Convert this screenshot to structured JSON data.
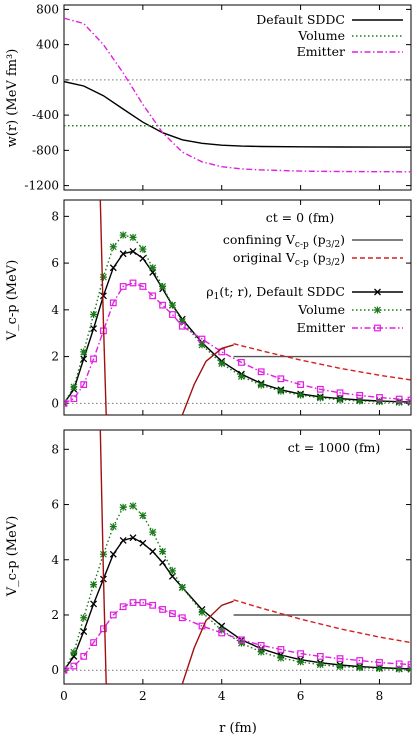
{
  "chart_data": [
    {
      "type": "line",
      "panel": "top",
      "ylabel": "w(r)  (MeV fm³)",
      "xlim": [
        0,
        8.8
      ],
      "ylim": [
        -1250,
        850
      ],
      "yticks": [
        800,
        400,
        0,
        -400,
        -800,
        -1200
      ],
      "ytick_labels": [
        "800",
        "400",
        "0",
        "-400",
        "-800",
        "-1200"
      ],
      "grid": false,
      "legend": "top-right",
      "reference_lines": [
        {
          "y": 0,
          "color": "#777777",
          "style": "dotted"
        },
        {
          "y": -520,
          "color": "#1a7a1a",
          "style": "dotted"
        }
      ],
      "series": [
        {
          "name": "Default SDDC",
          "color": "#000000",
          "style": "solid",
          "x": [
            0,
            0.5,
            1,
            1.5,
            2,
            2.5,
            3,
            3.5,
            4,
            4.5,
            5,
            6,
            7,
            8,
            8.8
          ],
          "y": [
            -20,
            -70,
            -180,
            -330,
            -480,
            -600,
            -680,
            -720,
            -742,
            -752,
            -756,
            -760,
            -762,
            -763,
            -763
          ]
        },
        {
          "name": "Volume",
          "color": "#1a7a1a",
          "style": "dotted",
          "x": [
            0,
            8.8
          ],
          "y": [
            -520,
            -520
          ]
        },
        {
          "name": "Emitter",
          "color": "#e020e0",
          "style": "dashdot",
          "x": [
            0,
            0.5,
            1,
            1.5,
            2,
            2.5,
            3,
            3.5,
            4,
            4.5,
            5,
            6,
            7,
            8,
            8.8
          ],
          "y": [
            700,
            640,
            400,
            80,
            -280,
            -600,
            -820,
            -930,
            -985,
            -1010,
            -1022,
            -1035,
            -1040,
            -1042,
            -1043
          ]
        }
      ]
    },
    {
      "type": "line",
      "panel": "middle",
      "annotation": "ct = 0  (fm)",
      "ylabel": "V_c-p  (MeV)",
      "xlim": [
        0,
        8.8
      ],
      "ylim": [
        -0.5,
        8.7
      ],
      "yticks": [
        0,
        2,
        4,
        6,
        8
      ],
      "ytick_labels": [
        "0",
        "2",
        "4",
        "6",
        "8"
      ],
      "grid": false,
      "legend": "top-right",
      "series": [
        {
          "name": "confining V_c-p (p_3/2)",
          "color": "#555555",
          "style": "solid",
          "x": [
            4.3,
            8.8
          ],
          "y": [
            2.0,
            2.0
          ]
        },
        {
          "name": "original V_c-p (p_3/2)",
          "color": "#d42020",
          "style": "dashed",
          "x": [
            4.3,
            5,
            6,
            7,
            8,
            8.8
          ],
          "y": [
            2.55,
            2.25,
            1.85,
            1.5,
            1.2,
            1.0
          ]
        },
        {
          "name": "ρ_1(t; r), Default SDDC",
          "color": "#000000",
          "style": "solid-x",
          "x": [
            0,
            0.25,
            0.5,
            0.75,
            1,
            1.25,
            1.5,
            1.75,
            2,
            2.25,
            2.5,
            2.75,
            3,
            3.5,
            4,
            4.5,
            5,
            5.5,
            6,
            6.5,
            7,
            7.5,
            8,
            8.5,
            8.8
          ],
          "y": [
            0,
            0.6,
            1.9,
            3.2,
            4.6,
            5.8,
            6.4,
            6.5,
            6.2,
            5.6,
            4.9,
            4.2,
            3.6,
            2.6,
            1.8,
            1.25,
            0.85,
            0.58,
            0.4,
            0.28,
            0.2,
            0.14,
            0.1,
            0.07,
            0.05
          ]
        },
        {
          "name": "Volume",
          "color": "#1a7a1a",
          "style": "dotted-star",
          "x": [
            0,
            0.25,
            0.5,
            0.75,
            1,
            1.25,
            1.5,
            1.75,
            2,
            2.25,
            2.5,
            2.75,
            3,
            3.5,
            4,
            4.5,
            5,
            5.5,
            6,
            6.5,
            7,
            7.5,
            8,
            8.5,
            8.8
          ],
          "y": [
            0,
            0.7,
            2.2,
            3.8,
            5.4,
            6.7,
            7.2,
            7.1,
            6.6,
            5.8,
            5.0,
            4.2,
            3.5,
            2.5,
            1.7,
            1.15,
            0.78,
            0.52,
            0.35,
            0.23,
            0.15,
            0.1,
            0.07,
            0.04,
            0.03
          ]
        },
        {
          "name": "Emitter",
          "color": "#e020e0",
          "style": "dashdot-square",
          "x": [
            0,
            0.25,
            0.5,
            0.75,
            1,
            1.25,
            1.5,
            1.75,
            2,
            2.25,
            2.5,
            2.75,
            3,
            3.5,
            4,
            4.5,
            5,
            5.5,
            6,
            6.5,
            7,
            7.5,
            8,
            8.5,
            8.8
          ],
          "y": [
            0,
            0.2,
            0.8,
            1.9,
            3.1,
            4.3,
            5.0,
            5.15,
            5.0,
            4.6,
            4.2,
            3.8,
            3.3,
            2.75,
            2.2,
            1.75,
            1.35,
            1.05,
            0.8,
            0.6,
            0.45,
            0.34,
            0.25,
            0.18,
            0.14
          ]
        },
        {
          "name": "",
          "color": "#a01010",
          "style": "solid",
          "x": [
            0.92,
            1.0,
            1.07,
            1.15
          ],
          "y": [
            8.7,
            3.5,
            -0.5,
            -0.5
          ]
        },
        {
          "name": "",
          "color": "#a01010",
          "style": "solid",
          "x": [
            3.0,
            3.3,
            3.6,
            4.0,
            4.3
          ],
          "y": [
            -0.5,
            0.8,
            1.8,
            2.35,
            2.5
          ]
        }
      ]
    },
    {
      "type": "line",
      "panel": "bottom",
      "annotation": "ct = 1000  (fm)",
      "ylabel": "V_c-p  (MeV)",
      "xlabel": "r  (fm)",
      "xlim": [
        0,
        8.8
      ],
      "ylim": [
        -0.5,
        8.7
      ],
      "xticks": [
        0,
        2,
        4,
        6,
        8
      ],
      "xtick_labels": [
        "0",
        "2",
        "4",
        "6",
        "8"
      ],
      "yticks": [
        0,
        2,
        4,
        6,
        8
      ],
      "ytick_labels": [
        "0",
        "2",
        "4",
        "6",
        "8"
      ],
      "grid": false,
      "series": [
        {
          "name": "confining V_c-p",
          "color": "#555555",
          "style": "solid",
          "x": [
            4.3,
            8.8
          ],
          "y": [
            2.0,
            2.0
          ]
        },
        {
          "name": "original V_c-p",
          "color": "#d42020",
          "style": "dashed",
          "x": [
            4.3,
            5,
            6,
            7,
            8,
            8.8
          ],
          "y": [
            2.55,
            2.25,
            1.85,
            1.5,
            1.2,
            1.0
          ]
        },
        {
          "name": "Default SDDC",
          "color": "#000000",
          "style": "solid-x",
          "x": [
            0,
            0.25,
            0.5,
            0.75,
            1,
            1.25,
            1.5,
            1.75,
            2,
            2.25,
            2.5,
            2.75,
            3,
            3.5,
            4,
            4.5,
            5,
            5.5,
            6,
            6.5,
            7,
            7.5,
            8,
            8.5,
            8.8
          ],
          "y": [
            0,
            0.5,
            1.4,
            2.4,
            3.3,
            4.2,
            4.7,
            4.8,
            4.6,
            4.3,
            3.9,
            3.4,
            3.0,
            2.2,
            1.6,
            1.1,
            0.78,
            0.55,
            0.38,
            0.27,
            0.19,
            0.13,
            0.09,
            0.06,
            0.05
          ]
        },
        {
          "name": "Volume",
          "color": "#1a7a1a",
          "style": "dotted-star",
          "x": [
            0,
            0.25,
            0.5,
            0.75,
            1,
            1.25,
            1.5,
            1.75,
            2,
            2.25,
            2.5,
            2.75,
            3,
            3.5,
            4,
            4.5,
            5,
            5.5,
            6,
            6.5,
            7,
            7.5,
            8,
            8.5,
            8.8
          ],
          "y": [
            0,
            0.65,
            1.9,
            3.1,
            4.2,
            5.2,
            5.9,
            5.95,
            5.6,
            5.0,
            4.3,
            3.6,
            3.0,
            2.1,
            1.45,
            0.98,
            0.66,
            0.44,
            0.3,
            0.2,
            0.13,
            0.09,
            0.06,
            0.04,
            0.03
          ]
        },
        {
          "name": "Emitter",
          "color": "#e020e0",
          "style": "dashdot-square",
          "x": [
            0,
            0.25,
            0.5,
            0.75,
            1,
            1.25,
            1.5,
            1.75,
            2,
            2.25,
            2.5,
            2.75,
            3,
            3.5,
            4,
            4.5,
            5,
            5.5,
            6,
            6.5,
            7,
            7.5,
            8,
            8.5,
            8.8
          ],
          "y": [
            0,
            0.15,
            0.5,
            1.0,
            1.5,
            2.0,
            2.3,
            2.45,
            2.45,
            2.35,
            2.2,
            2.05,
            1.9,
            1.6,
            1.35,
            1.1,
            0.9,
            0.75,
            0.6,
            0.5,
            0.42,
            0.35,
            0.28,
            0.23,
            0.2
          ]
        },
        {
          "name": "",
          "color": "#a01010",
          "style": "solid",
          "x": [
            0.92,
            1.0,
            1.07,
            1.15
          ],
          "y": [
            8.7,
            3.5,
            -0.5,
            -0.5
          ]
        },
        {
          "name": "",
          "color": "#a01010",
          "style": "solid",
          "x": [
            3.0,
            3.3,
            3.6,
            4.0,
            4.3
          ],
          "y": [
            -0.5,
            0.8,
            1.8,
            2.35,
            2.5
          ]
        }
      ]
    }
  ]
}
